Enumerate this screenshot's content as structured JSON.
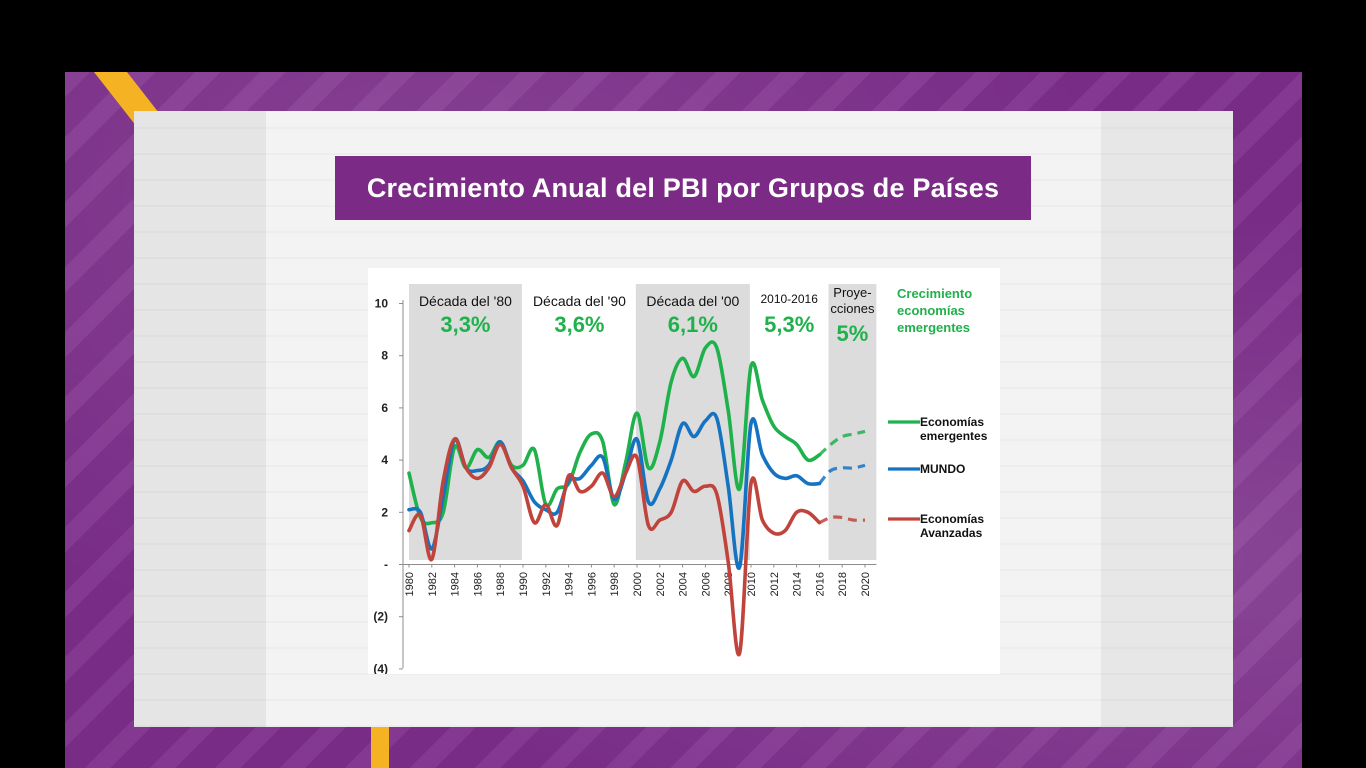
{
  "slide": {
    "title": "Crecimiento Anual del PBI por Grupos de Países"
  },
  "colors": {
    "background_purple": "#7d2e8b",
    "banner_purple": "#7b2a85",
    "accent_yellow": "#f5b223",
    "emerging_green": "#1fb14b",
    "world_blue": "#1573c2",
    "advanced_red": "#c0443c",
    "decade_band_gray": "#dcdcdc"
  },
  "chart_data": {
    "type": "line",
    "title": "Crecimiento Anual del PBI por Grupos de Países",
    "xlabel": "",
    "ylabel": "",
    "xlim": [
      1980,
      2021
    ],
    "ylim": [
      -4,
      10
    ],
    "y_ticks": [
      {
        "value": 10,
        "label": "10"
      },
      {
        "value": 8,
        "label": "8"
      },
      {
        "value": 6,
        "label": "6"
      },
      {
        "value": 4,
        "label": "4"
      },
      {
        "value": 2,
        "label": "2"
      },
      {
        "value": 0,
        "label": "-"
      },
      {
        "value": -2,
        "label": "(2)"
      },
      {
        "value": -4,
        "label": "(4)"
      }
    ],
    "x_ticks": [
      1980,
      1982,
      1984,
      1986,
      1988,
      1990,
      1992,
      1994,
      1996,
      1998,
      2000,
      2002,
      2004,
      2006,
      2008,
      2010,
      2012,
      2014,
      2016,
      2018,
      2020
    ],
    "grid": false,
    "legend_placement": "right",
    "periods": [
      {
        "label": "Década del '80",
        "value": "3,3%",
        "start": 1980,
        "end": 1989.9,
        "shaded": true
      },
      {
        "label": "Década del '90",
        "value": "3,6%",
        "start": 1990,
        "end": 1999.9,
        "shaded": false
      },
      {
        "label": "Década del '00",
        "value": "6,1%",
        "start": 1999.9,
        "end": 2009.9,
        "shaded": true
      },
      {
        "label": "2010-2016",
        "value": "5,3%",
        "start": 2009.9,
        "end": 2016.8,
        "shaded": false
      },
      {
        "label": "Proye-\ncciones",
        "value": "5%",
        "start": 2016.8,
        "end": 2021.0,
        "shaded": true
      }
    ],
    "annotation": "Crecimiento\neconomías\nemergentes",
    "projection_start": 2016,
    "series": [
      {
        "name": "Economías emergentes",
        "color": "#1fb14b",
        "x": [
          1980,
          1981,
          1982,
          1983,
          1984,
          1985,
          1986,
          1987,
          1988,
          1989,
          1990,
          1991,
          1992,
          1993,
          1994,
          1995,
          1996,
          1997,
          1998,
          1999,
          2000,
          2001,
          2002,
          2003,
          2004,
          2005,
          2006,
          2007,
          2008,
          2009,
          2010,
          2011,
          2012,
          2013,
          2014,
          2015,
          2016,
          2017,
          2018,
          2019,
          2020
        ],
        "values": [
          3.5,
          1.8,
          1.6,
          2.0,
          4.5,
          3.7,
          4.4,
          4.1,
          4.7,
          3.8,
          3.8,
          4.4,
          2.3,
          2.9,
          3.1,
          4.3,
          5.0,
          4.7,
          2.3,
          3.9,
          5.8,
          3.7,
          4.7,
          7.0,
          7.9,
          7.2,
          8.3,
          8.3,
          5.9,
          2.9,
          7.6,
          6.3,
          5.3,
          4.9,
          4.6,
          4.0,
          4.2,
          4.6,
          4.9,
          5.0,
          5.1
        ]
      },
      {
        "name": "MUNDO",
        "color": "#1573c2",
        "x": [
          1980,
          1981,
          1982,
          1983,
          1984,
          1985,
          1986,
          1987,
          1988,
          1989,
          1990,
          1991,
          1992,
          1993,
          1994,
          1995,
          1996,
          1997,
          1998,
          1999,
          2000,
          2001,
          2002,
          2003,
          2004,
          2005,
          2006,
          2007,
          2008,
          2009,
          2010,
          2011,
          2012,
          2013,
          2014,
          2015,
          2016,
          2017,
          2018,
          2019,
          2020
        ],
        "values": [
          2.1,
          2.0,
          0.6,
          2.6,
          4.8,
          3.7,
          3.6,
          3.8,
          4.7,
          3.7,
          3.2,
          2.4,
          2.1,
          2.0,
          3.2,
          3.3,
          3.8,
          4.1,
          2.5,
          3.5,
          4.8,
          2.4,
          2.9,
          4.0,
          5.4,
          4.9,
          5.5,
          5.6,
          3.0,
          -0.1,
          5.4,
          4.2,
          3.5,
          3.3,
          3.4,
          3.1,
          3.1,
          3.6,
          3.7,
          3.7,
          3.8
        ]
      },
      {
        "name": "Economías Avanzadas",
        "color": "#c0443c",
        "x": [
          1980,
          1981,
          1982,
          1983,
          1984,
          1985,
          1986,
          1987,
          1988,
          1989,
          1990,
          1991,
          1992,
          1993,
          1994,
          1995,
          1996,
          1997,
          1998,
          1999,
          2000,
          2001,
          2002,
          2003,
          2004,
          2005,
          2006,
          2007,
          2008,
          2009,
          2010,
          2011,
          2012,
          2013,
          2014,
          2015,
          2016,
          2017,
          2018,
          2019,
          2020
        ],
        "values": [
          1.3,
          1.9,
          0.2,
          3.2,
          4.8,
          3.7,
          3.3,
          3.7,
          4.6,
          3.7,
          3.0,
          1.6,
          2.3,
          1.5,
          3.4,
          2.8,
          3.0,
          3.5,
          2.6,
          3.5,
          4.1,
          1.5,
          1.7,
          2.0,
          3.2,
          2.8,
          3.0,
          2.7,
          0.1,
          -3.4,
          3.1,
          1.7,
          1.2,
          1.3,
          2.0,
          2.0,
          1.6,
          1.8,
          1.8,
          1.7,
          1.7
        ]
      }
    ],
    "legend": [
      {
        "series": "Economías emergentes",
        "label": "Economías\nemergentes"
      },
      {
        "series": "MUNDO",
        "label": "MUNDO"
      },
      {
        "series": "Economías Avanzadas",
        "label": "Economías\nAvanzadas"
      }
    ]
  }
}
